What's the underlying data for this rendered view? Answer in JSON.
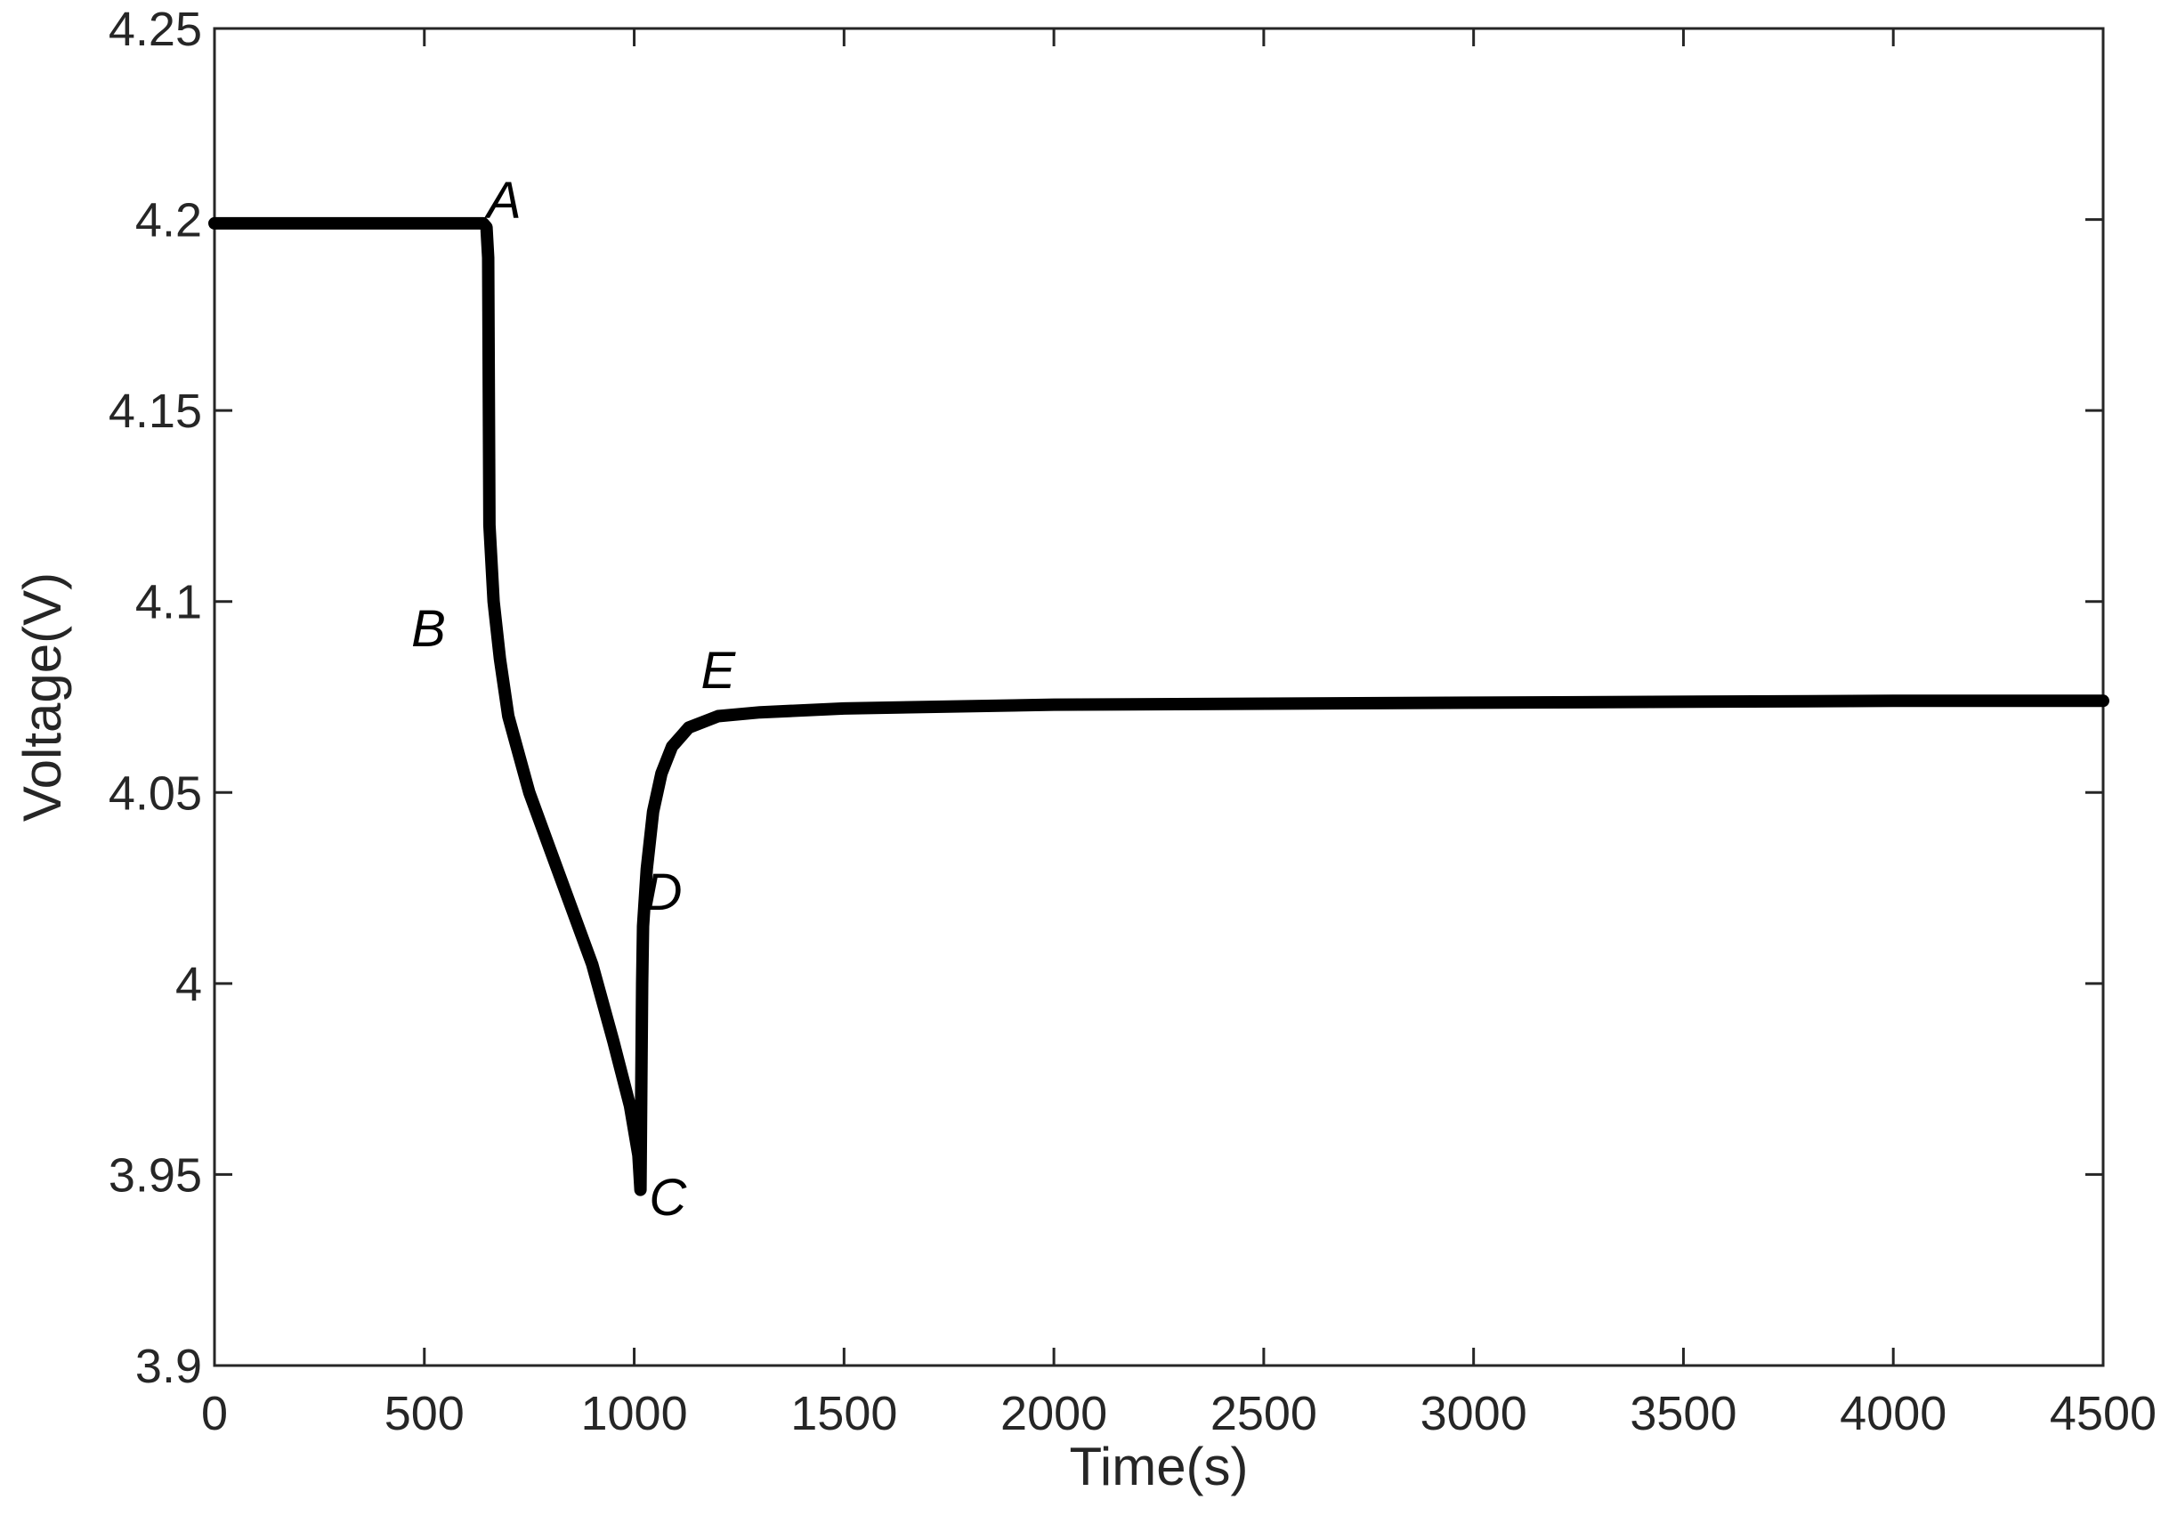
{
  "chart_data": {
    "type": "line",
    "title": "",
    "xlabel": "Time(s)",
    "ylabel": "Voltage(V)",
    "xlim": [
      0,
      4500
    ],
    "ylim": [
      3.9,
      4.25
    ],
    "xticks": [
      0,
      500,
      1000,
      1500,
      2000,
      2500,
      3000,
      3500,
      4000,
      4500
    ],
    "yticks": [
      3.9,
      3.95,
      4.0,
      4.05,
      4.1,
      4.15,
      4.2,
      4.25
    ],
    "xtick_labels": [
      "0",
      "500",
      "1000",
      "1500",
      "2000",
      "2500",
      "3000",
      "3500",
      "4000",
      "4500"
    ],
    "ytick_labels": [
      "3.9",
      "3.95",
      "4",
      "4.05",
      "4.1",
      "4.15",
      "4.2",
      "4.25"
    ],
    "grid": false,
    "colors": {
      "line": "#000000",
      "axes": "#262626"
    },
    "series": [
      {
        "points": [
          [
            0,
            4.199
          ],
          [
            300,
            4.199
          ],
          [
            640,
            4.199
          ],
          [
            648,
            4.198
          ],
          [
            652,
            4.19
          ],
          [
            655,
            4.12
          ],
          [
            665,
            4.1
          ],
          [
            680,
            4.085
          ],
          [
            700,
            4.07
          ],
          [
            750,
            4.05
          ],
          [
            800,
            4.035
          ],
          [
            850,
            4.02
          ],
          [
            900,
            4.005
          ],
          [
            950,
            3.985
          ],
          [
            990,
            3.968
          ],
          [
            1010,
            3.955
          ],
          [
            1015,
            3.946
          ],
          [
            1017,
            3.975
          ],
          [
            1019,
            4.0
          ],
          [
            1021,
            4.015
          ],
          [
            1030,
            4.03
          ],
          [
            1045,
            4.045
          ],
          [
            1065,
            4.055
          ],
          [
            1090,
            4.062
          ],
          [
            1130,
            4.067
          ],
          [
            1200,
            4.07
          ],
          [
            1300,
            4.071
          ],
          [
            1500,
            4.072
          ],
          [
            2000,
            4.073
          ],
          [
            3000,
            4.0735
          ],
          [
            4000,
            4.074
          ],
          [
            4500,
            4.074
          ]
        ]
      }
    ],
    "annotations": [
      {
        "text": "A",
        "x": 690,
        "y": 4.205
      },
      {
        "text": "B",
        "x": 510,
        "y": 4.093
      },
      {
        "text": "C",
        "x": 1080,
        "y": 3.944
      },
      {
        "text": "D",
        "x": 1070,
        "y": 4.024
      },
      {
        "text": "E",
        "x": 1200,
        "y": 4.082
      }
    ]
  }
}
